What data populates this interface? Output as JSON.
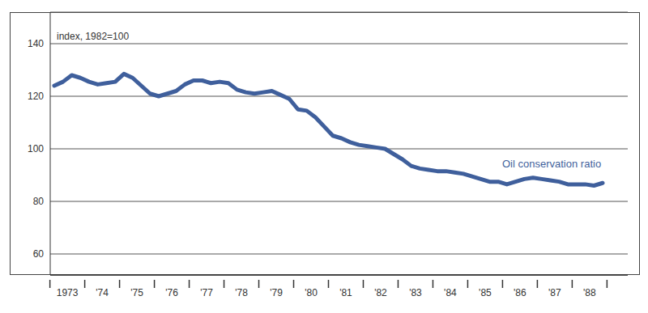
{
  "chart_data": {
    "type": "line",
    "ylabel": "index, 1982=100",
    "categories": [
      "1973",
      null,
      null,
      null,
      "'74",
      null,
      null,
      null,
      "'75",
      null,
      null,
      null,
      "'76",
      null,
      null,
      null,
      "'77",
      null,
      null,
      null,
      "'78",
      null,
      null,
      null,
      "'79",
      null,
      null,
      null,
      "'80",
      null,
      null,
      null,
      "'81",
      null,
      null,
      null,
      "'82",
      null,
      null,
      null,
      "'83",
      null,
      null,
      null,
      "'84",
      null,
      null,
      null,
      "'85",
      null,
      null,
      null,
      "'86",
      null,
      null,
      null,
      "'87",
      null,
      null,
      null,
      "'88",
      null,
      null,
      null
    ],
    "series": [
      {
        "name": "Oil conservation ratio",
        "color": "#3f5f9c",
        "values": [
          124,
          125.5,
          128,
          127,
          125.5,
          124.5,
          125,
          125.5,
          128.5,
          127,
          124,
          121,
          120,
          121,
          122,
          124.5,
          126,
          126,
          125,
          125.5,
          125,
          122.5,
          121.5,
          121,
          121.5,
          122,
          120.5,
          119,
          115,
          114.5,
          112,
          108.5,
          105,
          104,
          102.5,
          101.5,
          101,
          100.5,
          100,
          98,
          96,
          93.5,
          92.5,
          92,
          91.5,
          91.5,
          91,
          90.5,
          89.5,
          88.5,
          87.5,
          87.5,
          86.5,
          87.5,
          88.5,
          89,
          88.5,
          88,
          87.5,
          86.5,
          86.5,
          86.5,
          86,
          87
        ]
      }
    ],
    "ylim": [
      52,
      152
    ],
    "yticks": [
      60,
      80,
      100,
      120,
      140
    ],
    "grid": true
  }
}
